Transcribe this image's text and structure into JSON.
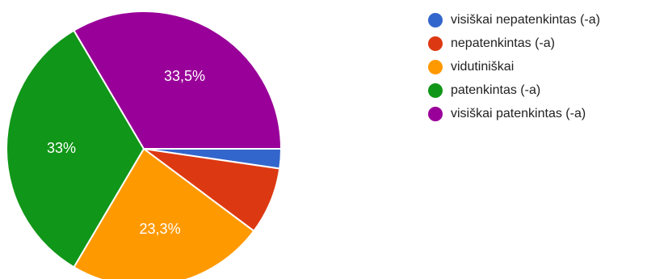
{
  "chart_data": {
    "type": "pie",
    "categories": [
      "visiškai nepatenkintas (-a)",
      "nepatenkintas (-a)",
      "vidutiniškai",
      "patenkintas (-a)",
      "visiškai patenkintas (-a)"
    ],
    "values": [
      2.3,
      7.9,
      23.3,
      33.0,
      33.5
    ],
    "data_labels": [
      "",
      "",
      "23,3%",
      "33%",
      "33,5%"
    ],
    "colors": [
      "#3366cc",
      "#dc3912",
      "#ff9900",
      "#109618",
      "#990099"
    ],
    "start_angle_deg": 0,
    "direction": "clockwise",
    "legend_position": "right"
  },
  "legend": {
    "items": [
      {
        "label": "visiškai nepatenkintas (-a)",
        "color": "#3366cc"
      },
      {
        "label": "nepatenkintas (-a)",
        "color": "#dc3912"
      },
      {
        "label": "vidutiniškai",
        "color": "#ff9900"
      },
      {
        "label": "patenkintas (-a)",
        "color": "#109618"
      },
      {
        "label": "visiškai patenkintas (-a)",
        "color": "#990099"
      }
    ]
  }
}
